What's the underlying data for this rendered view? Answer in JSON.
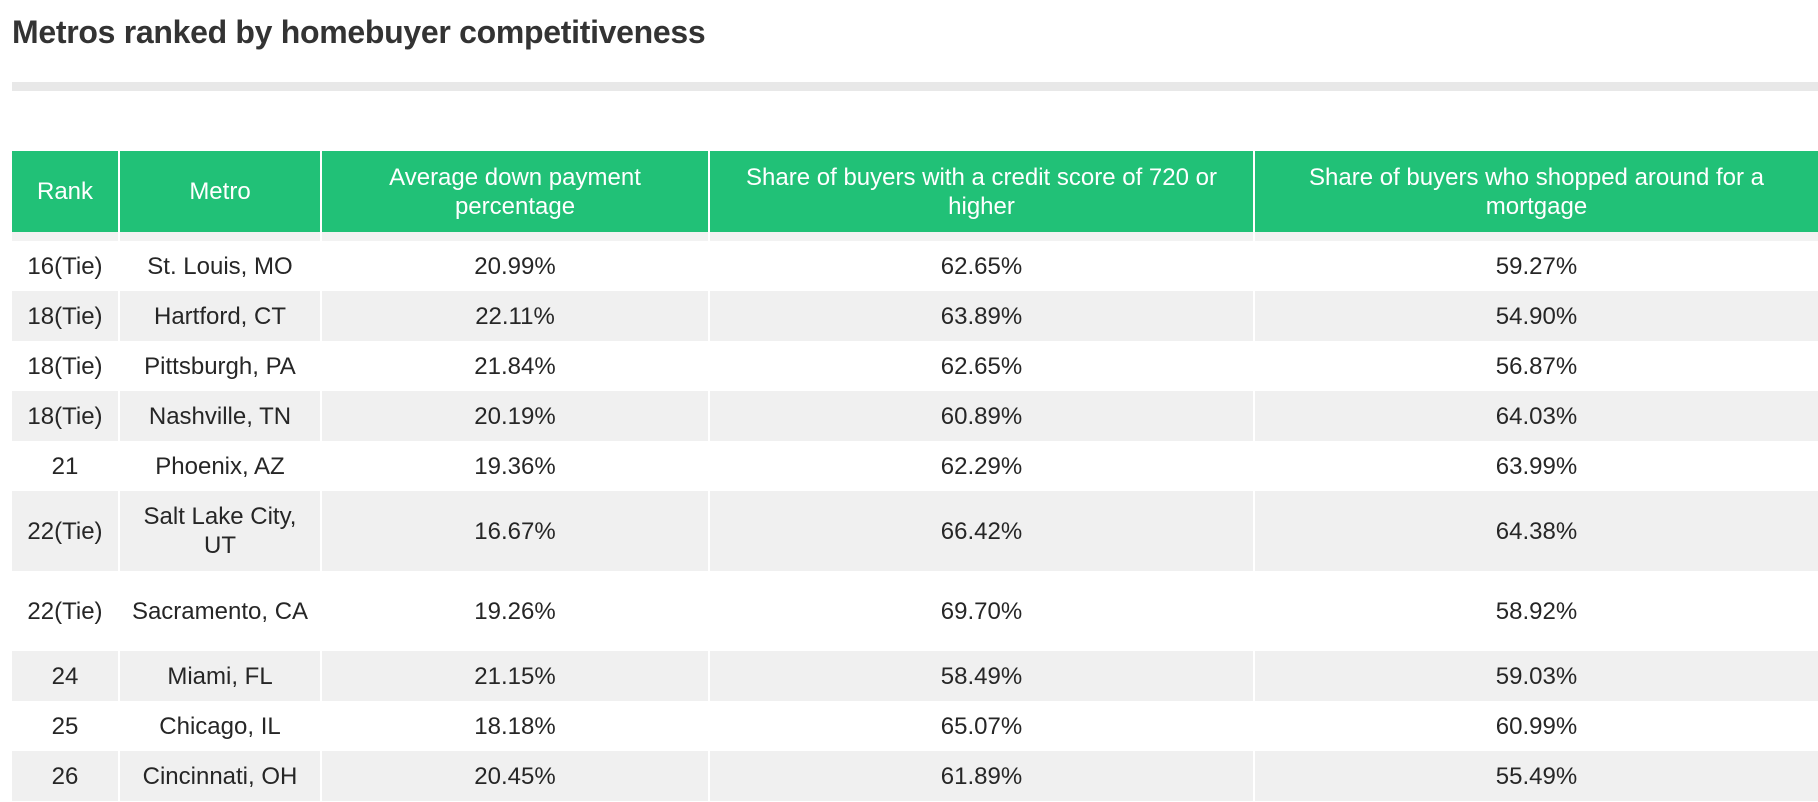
{
  "title": "Metros ranked by homebuyer competitiveness",
  "colors": {
    "header_background": "#21c177",
    "header_text": "#ffffff",
    "stripe": "#f0f0f0"
  },
  "chart_data": {
    "type": "table",
    "title": "Metros ranked by homebuyer competitiveness",
    "columns": [
      "Rank",
      "Metro",
      "Average down payment percentage",
      "Share of buyers with a credit score of 720 or higher",
      "Share of buyers who shopped around for a mortgage"
    ],
    "rows": [
      [
        "16(Tie)",
        "St. Louis, MO",
        "20.99%",
        "62.65%",
        "59.27%"
      ],
      [
        "18(Tie)",
        "Hartford, CT",
        "22.11%",
        "63.89%",
        "54.90%"
      ],
      [
        "18(Tie)",
        "Pittsburgh, PA",
        "21.84%",
        "62.65%",
        "56.87%"
      ],
      [
        "18(Tie)",
        "Nashville, TN",
        "20.19%",
        "60.89%",
        "64.03%"
      ],
      [
        "21",
        "Phoenix, AZ",
        "19.36%",
        "62.29%",
        "63.99%"
      ],
      [
        "22(Tie)",
        "Salt Lake City, UT",
        "16.67%",
        "66.42%",
        "64.38%"
      ],
      [
        "22(Tie)",
        "Sacramento, CA",
        "19.26%",
        "69.70%",
        "58.92%"
      ],
      [
        "24",
        "Miami, FL",
        "21.15%",
        "58.49%",
        "59.03%"
      ],
      [
        "25",
        "Chicago, IL",
        "18.18%",
        "65.07%",
        "60.99%"
      ],
      [
        "26",
        "Cincinnati, OH",
        "20.45%",
        "61.89%",
        "55.49%"
      ]
    ]
  }
}
